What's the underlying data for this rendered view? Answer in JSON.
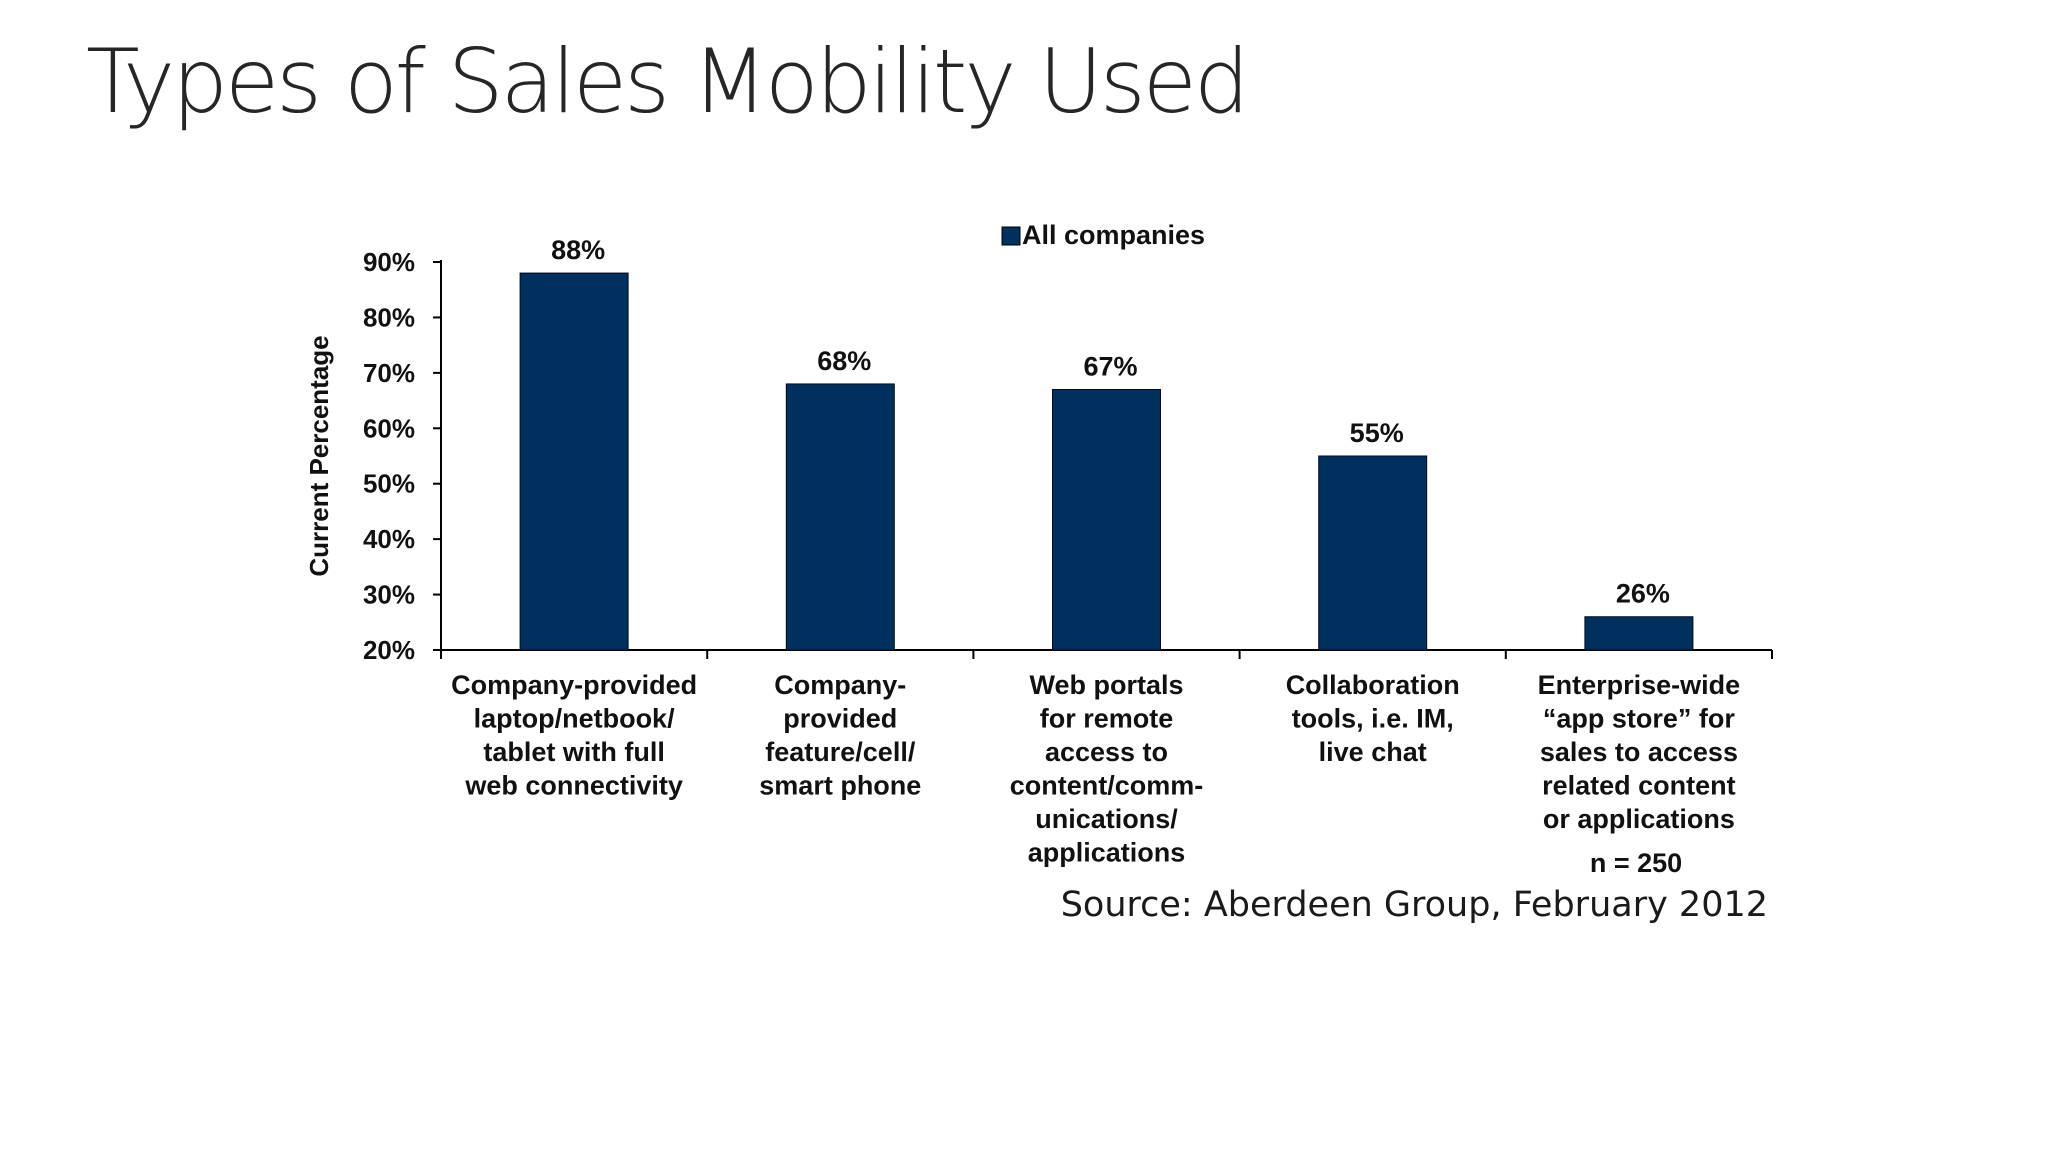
{
  "slide": {
    "title": "Types of Sales Mobility Used",
    "source": "Source: Aberdeen Group, February 2012"
  },
  "chart_data": {
    "type": "bar",
    "categories": [
      "Company-provided laptop/netbook/ tablet with full web connectivity",
      "Company- provided feature/cell/ smart phone",
      "Web portals for remote access to content/comm- unications/ applications",
      "Collaboration tools, i.e. IM, live chat",
      "Enterprise-wide “app store” for sales to access related content or applications"
    ],
    "category_lines": [
      [
        "Company-provided",
        "laptop/netbook/",
        "tablet with full",
        "web connectivity"
      ],
      [
        "Company-",
        "provided",
        "feature/cell/",
        "smart phone"
      ],
      [
        "Web portals",
        "for remote",
        "access to",
        "content/comm-",
        "unications/",
        "applications"
      ],
      [
        "Collaboration",
        "tools, i.e. IM,",
        "live chat"
      ],
      [
        "Enterprise-wide",
        "“app store” for",
        "sales to access",
        "related content",
        "or applications"
      ]
    ],
    "series": [
      {
        "name": "All companies",
        "values": [
          88,
          68,
          67,
          55,
          26
        ],
        "color": "#00305e"
      }
    ],
    "data_labels": [
      "88%",
      "68%",
      "67%",
      "55%",
      "26%"
    ],
    "ylabel": "Current Percentage",
    "xlabel": "",
    "ylim": [
      20,
      90
    ],
    "yticks": [
      20,
      30,
      40,
      50,
      60,
      70,
      80,
      90
    ],
    "ytick_labels": [
      "20%",
      "30%",
      "40%",
      "50%",
      "60%",
      "70%",
      "80%",
      "90%"
    ],
    "legend_position": "top-center",
    "grid": false,
    "annotation": "n = 250"
  }
}
